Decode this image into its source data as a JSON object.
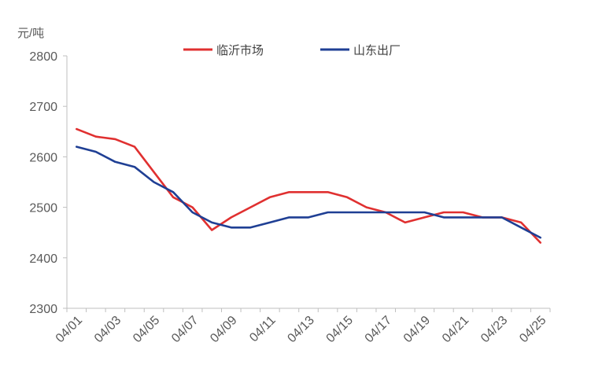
{
  "chart_data": {
    "type": "line",
    "ylabel": "元/吨",
    "ylim": [
      2300,
      2800
    ],
    "yticks": [
      2300,
      2400,
      2500,
      2600,
      2700,
      2800
    ],
    "x_dates": [
      "04/01",
      "04/02",
      "04/03",
      "04/04",
      "04/05",
      "04/06",
      "04/07",
      "04/08",
      "04/09",
      "04/10",
      "04/11",
      "04/12",
      "04/13",
      "04/14",
      "04/15",
      "04/16",
      "04/17",
      "04/18",
      "04/19",
      "04/20",
      "04/21",
      "04/22",
      "04/23",
      "04/24",
      "04/25"
    ],
    "xtick_labels": [
      "04/01",
      "04/03",
      "04/05",
      "04/07",
      "04/09",
      "04/11",
      "04/13",
      "04/15",
      "04/17",
      "04/19",
      "04/21",
      "04/23",
      "04/25"
    ],
    "legend_position": "top-center",
    "grid": false,
    "series": [
      {
        "name": "临沂市场",
        "color": "#e03030",
        "values": [
          2655,
          2640,
          2635,
          2620,
          2570,
          2520,
          2500,
          2455,
          2480,
          2500,
          2520,
          2530,
          2530,
          2530,
          2520,
          2500,
          2490,
          2470,
          2480,
          2490,
          2490,
          2480,
          2480,
          2470,
          2430
        ]
      },
      {
        "name": "山东出厂",
        "color": "#1f3f94",
        "values": [
          2620,
          2610,
          2590,
          2580,
          2550,
          2530,
          2490,
          2470,
          2460,
          2460,
          2470,
          2480,
          2480,
          2490,
          2490,
          2490,
          2490,
          2490,
          2490,
          2480,
          2480,
          2480,
          2480,
          2460,
          2440
        ]
      }
    ]
  }
}
